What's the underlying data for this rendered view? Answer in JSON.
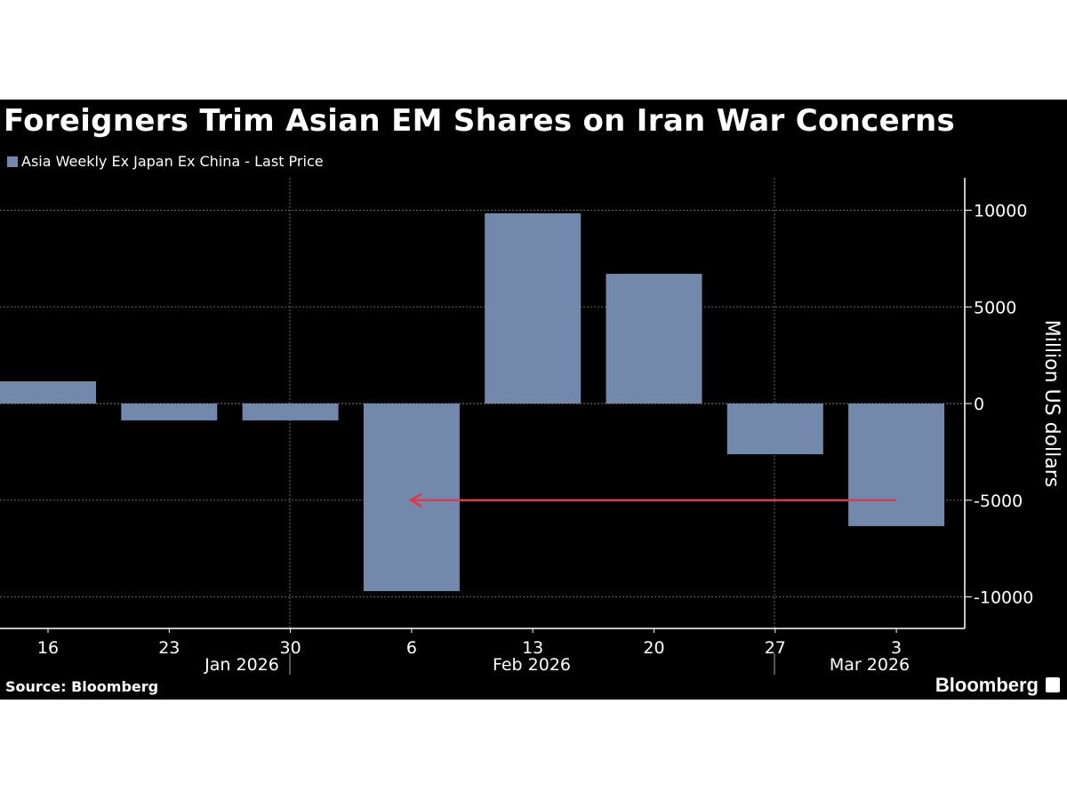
{
  "chart_data": {
    "type": "bar",
    "title": "Foreigners Trim Asian EM Shares on Iran War Concerns",
    "categories": [
      "16",
      "23",
      "30",
      "6",
      "13",
      "20",
      "27",
      "3"
    ],
    "month_labels": [
      "Jan 2026",
      "Feb 2026",
      "Mar 2026"
    ],
    "series": [
      {
        "name": "Asia Weekly Ex Japan Ex China - Last Price",
        "values": [
          1150,
          -870,
          -870,
          -9700,
          9840,
          6710,
          -2620,
          -6340
        ],
        "color": "#7289ab"
      }
    ],
    "ylabel": "Million US dollars",
    "ylim": [
      -11500,
      11800
    ],
    "yticks": [
      10000,
      5000,
      0,
      -5000,
      -10000
    ],
    "ytick_labels": [
      "10000",
      "5000",
      "0",
      "-5000",
      "-10000"
    ],
    "y_axis_position": "right",
    "grid": true,
    "legend_position": "top-left",
    "annotation": {
      "type": "arrow",
      "from_category": "3",
      "to_category": "6",
      "y": -5000,
      "color": "#e8334a"
    },
    "source": "Source: Bloomberg",
    "brand": "Bloomberg"
  }
}
